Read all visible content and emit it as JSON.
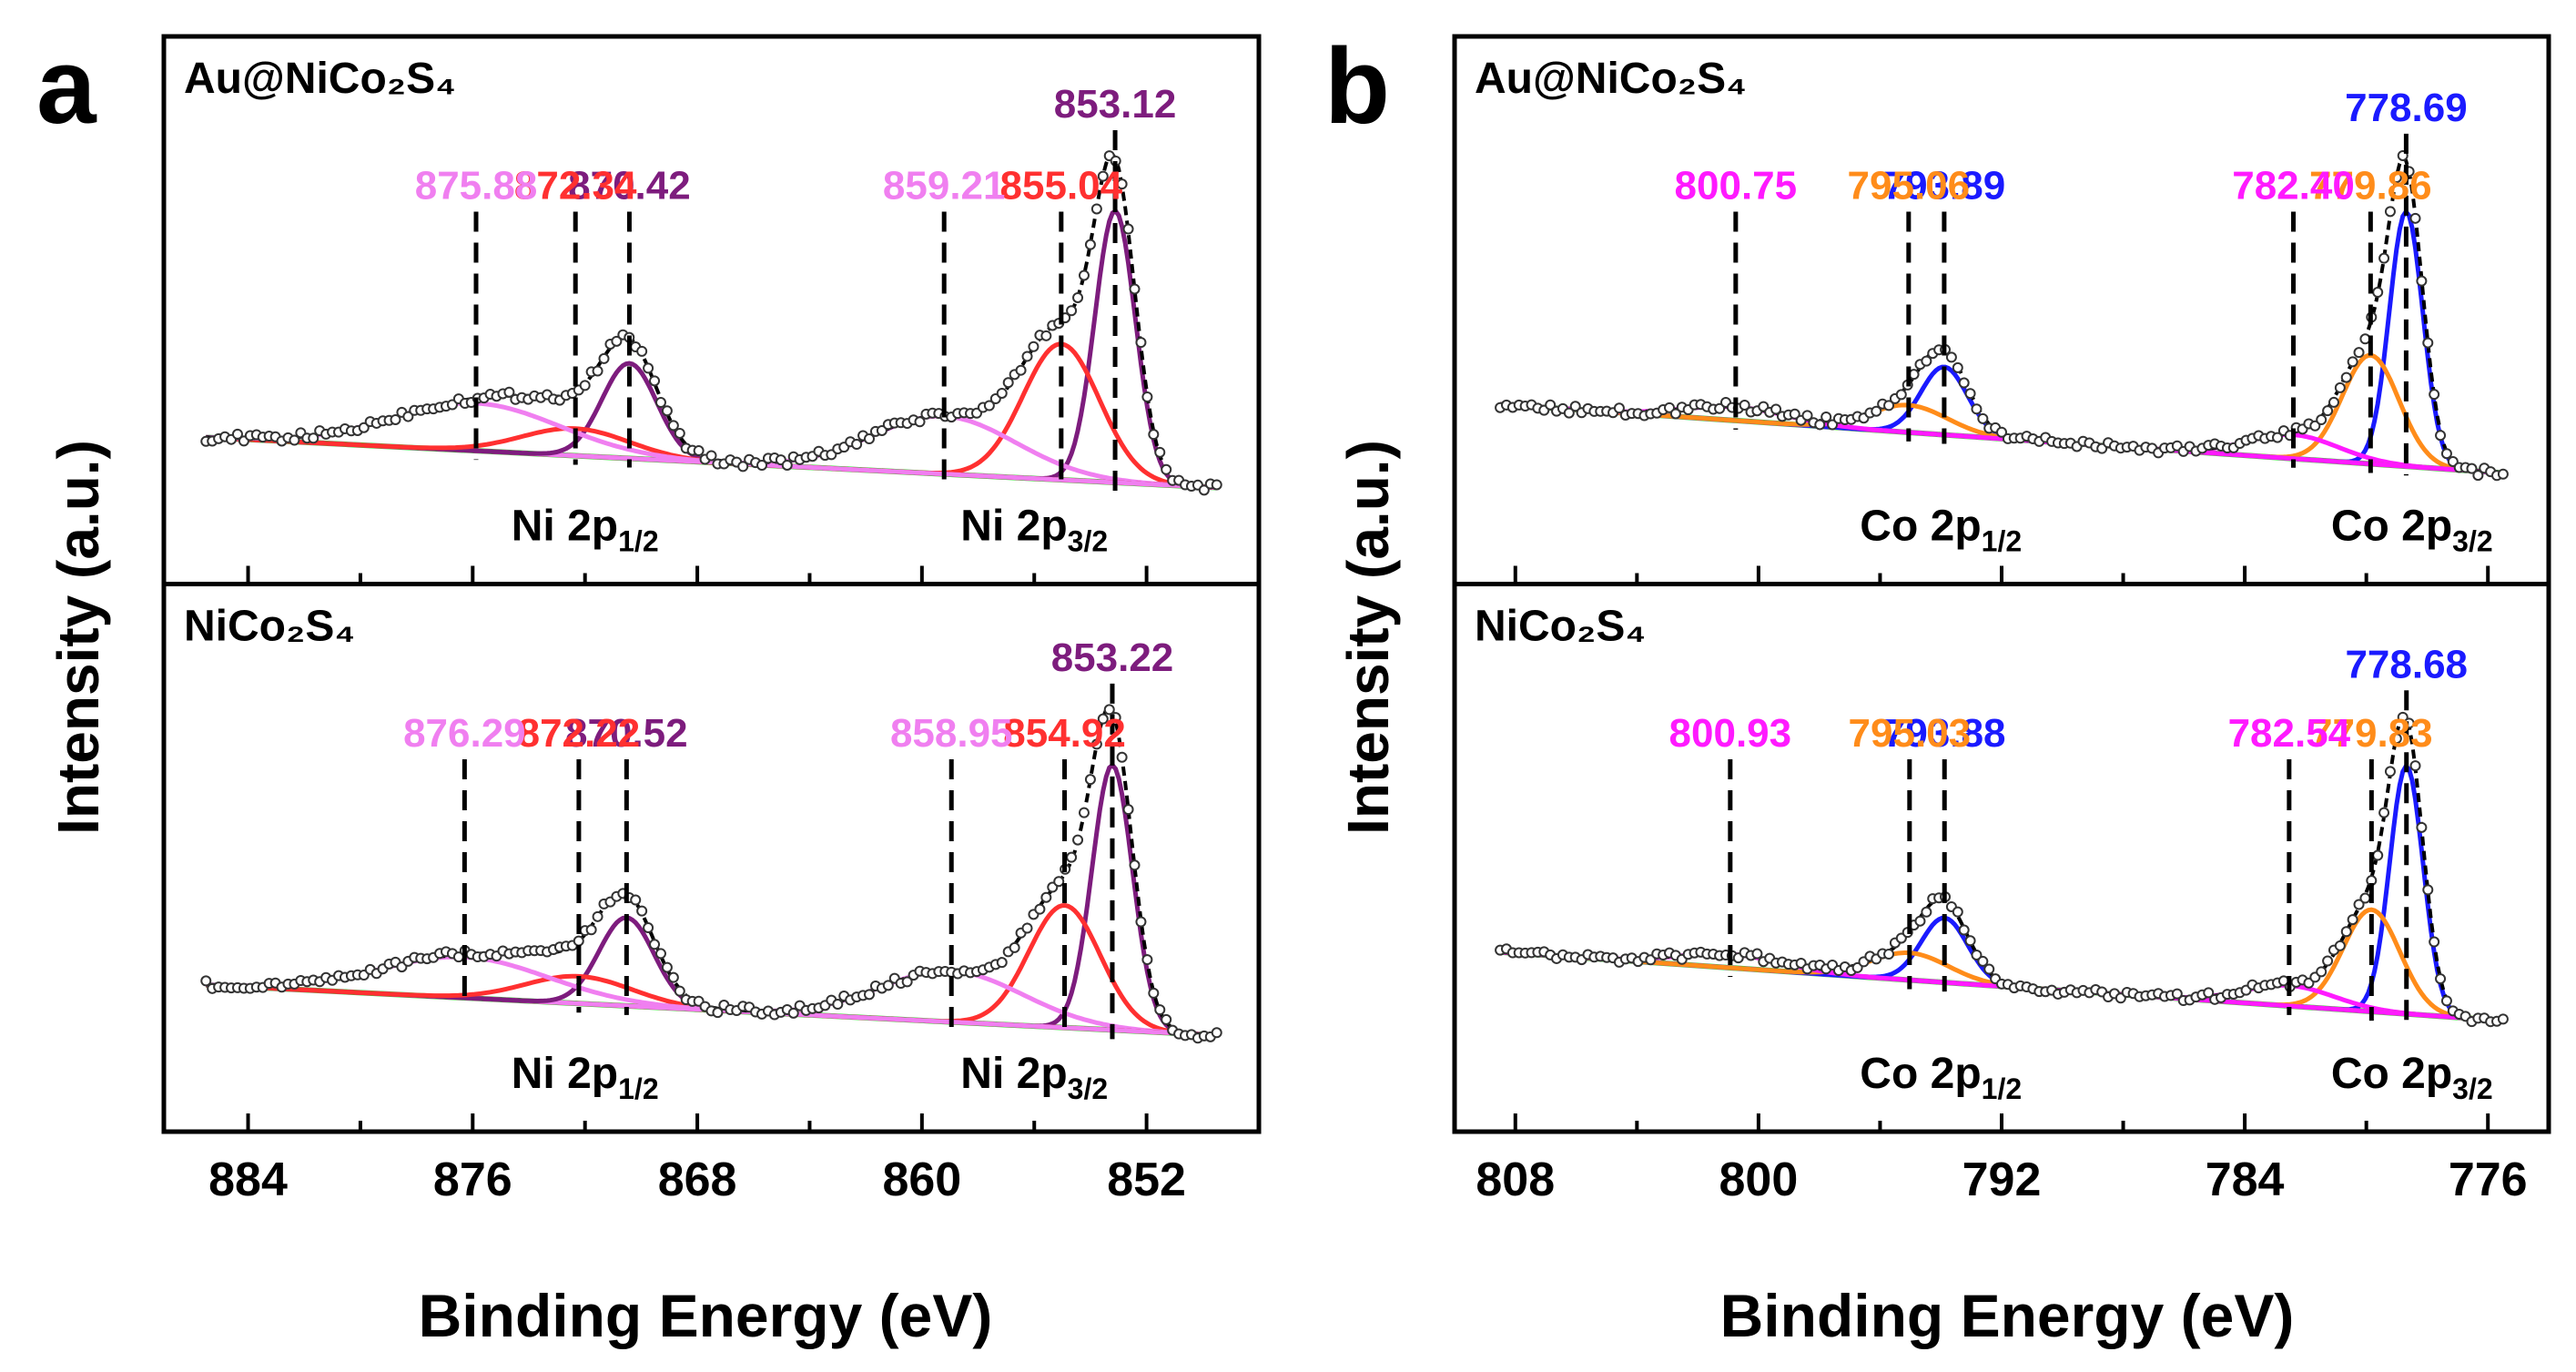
{
  "colors": {
    "frame": "#000000",
    "baseline": "#2ad42a",
    "red_peak": "#ff3030",
    "purple_peak": "#7d1c7d",
    "pink_peak": "#f07ff0",
    "blue_peak": "#1a1aff",
    "orange_peak": "#ff8c1a",
    "magenta_peak": "#ff1aff",
    "envelope": "#000000"
  },
  "chart_data": [
    {
      "type": "line",
      "panel_letter": "a",
      "title": "",
      "xlabel": "Binding Energy (eV)",
      "ylabel": "Intensity (a.u.)",
      "xlim": [
        887,
        848
      ],
      "x_ticks": [
        "884",
        "876",
        "868",
        "860",
        "852"
      ],
      "subplots": [
        {
          "sample_label": "Au@NiCo₂S₄",
          "region_labels": [
            {
              "main": "Ni 2p",
              "sub": "1/2",
              "x": 872
            },
            {
              "main": "Ni 2p",
              "sub": "3/2",
              "x": 856
            }
          ],
          "baseline": [
            0.18,
            0.02
          ],
          "peaks": [
            {
              "center": 853.12,
              "label": "853.12",
              "amp": 0.8,
              "fwhm": 1.7,
              "color_key": "purple_peak"
            },
            {
              "center": 855.04,
              "label": "855.04",
              "amp": 0.4,
              "fwhm": 3.2,
              "color_key": "red_peak"
            },
            {
              "center": 859.21,
              "label": "859.21",
              "amp": 0.17,
              "fwhm": 6.0,
              "color_key": "pink_peak"
            },
            {
              "center": 870.42,
              "label": "870.42",
              "amp": 0.28,
              "fwhm": 2.3,
              "color_key": "purple_peak"
            },
            {
              "center": 872.34,
              "label": "872.34",
              "amp": 0.08,
              "fwhm": 4.5,
              "color_key": "red_peak"
            },
            {
              "center": 875.88,
              "label": "875.88",
              "amp": 0.14,
              "fwhm": 7.0,
              "color_key": "pink_peak"
            }
          ]
        },
        {
          "sample_label": "NiCo₂S₄",
          "region_labels": [
            {
              "main": "Ni 2p",
              "sub": "1/2",
              "x": 872
            },
            {
              "main": "Ni 2p",
              "sub": "3/2",
              "x": 856
            }
          ],
          "baseline": [
            0.18,
            0.02
          ],
          "peaks": [
            {
              "center": 853.22,
              "label": "853.22",
              "amp": 0.78,
              "fwhm": 1.7,
              "color_key": "purple_peak"
            },
            {
              "center": 854.92,
              "label": "854.92",
              "amp": 0.36,
              "fwhm": 3.0,
              "color_key": "red_peak"
            },
            {
              "center": 858.95,
              "label": "858.95",
              "amp": 0.15,
              "fwhm": 6.0,
              "color_key": "pink_peak"
            },
            {
              "center": 870.52,
              "label": "870.52",
              "amp": 0.26,
              "fwhm": 2.3,
              "color_key": "purple_peak"
            },
            {
              "center": 872.22,
              "label": "872.22",
              "amp": 0.08,
              "fwhm": 4.5,
              "color_key": "red_peak"
            },
            {
              "center": 876.29,
              "label": "876.29",
              "amp": 0.12,
              "fwhm": 7.0,
              "color_key": "pink_peak"
            }
          ]
        }
      ]
    },
    {
      "type": "line",
      "panel_letter": "b",
      "title": "",
      "xlabel": "Binding Energy (eV)",
      "ylabel": "Intensity (a.u.)",
      "xlim": [
        810,
        774
      ],
      "x_ticks": [
        "808",
        "800",
        "792",
        "784",
        "776"
      ],
      "subplots": [
        {
          "sample_label": "Au@NiCo₂S₄",
          "region_labels": [
            {
              "main": "Co 2p",
              "sub": "1/2",
              "x": 794
            },
            {
              "main": "Co 2p",
              "sub": "3/2",
              "x": 778.5
            }
          ],
          "baseline": [
            0.28,
            0.06
          ],
          "peaks": [
            {
              "center": 778.69,
              "label": "778.69",
              "amp": 0.75,
              "fwhm": 1.3,
              "color_key": "blue_peak"
            },
            {
              "center": 779.86,
              "label": "779.86",
              "amp": 0.32,
              "fwhm": 2.2,
              "color_key": "orange_peak"
            },
            {
              "center": 782.4,
              "label": "782.40",
              "amp": 0.07,
              "fwhm": 3.5,
              "color_key": "magenta_peak"
            },
            {
              "center": 793.89,
              "label": "793.89",
              "amp": 0.2,
              "fwhm": 1.8,
              "color_key": "blue_peak"
            },
            {
              "center": 795.06,
              "label": "795.06",
              "amp": 0.08,
              "fwhm": 3.0,
              "color_key": "orange_peak"
            },
            {
              "center": 800.75,
              "label": "800.75",
              "amp": 0.04,
              "fwhm": 4.0,
              "color_key": "magenta_peak"
            }
          ]
        },
        {
          "sample_label": "NiCo₂S₄",
          "region_labels": [
            {
              "main": "Co 2p",
              "sub": "1/2",
              "x": 794
            },
            {
              "main": "Co 2p",
              "sub": "3/2",
              "x": 778.5
            }
          ],
          "baseline": [
            0.28,
            0.06
          ],
          "peaks": [
            {
              "center": 778.68,
              "label": "778.68",
              "amp": 0.73,
              "fwhm": 1.3,
              "color_key": "blue_peak"
            },
            {
              "center": 779.83,
              "label": "779.83",
              "amp": 0.3,
              "fwhm": 2.2,
              "color_key": "orange_peak"
            },
            {
              "center": 782.54,
              "label": "782.54",
              "amp": 0.06,
              "fwhm": 3.5,
              "color_key": "magenta_peak"
            },
            {
              "center": 793.88,
              "label": "793.88",
              "amp": 0.19,
              "fwhm": 1.8,
              "color_key": "blue_peak"
            },
            {
              "center": 795.03,
              "label": "795.03",
              "amp": 0.08,
              "fwhm": 3.0,
              "color_key": "orange_peak"
            },
            {
              "center": 800.93,
              "label": "800.93",
              "amp": 0.04,
              "fwhm": 4.0,
              "color_key": "magenta_peak"
            }
          ]
        }
      ]
    }
  ]
}
